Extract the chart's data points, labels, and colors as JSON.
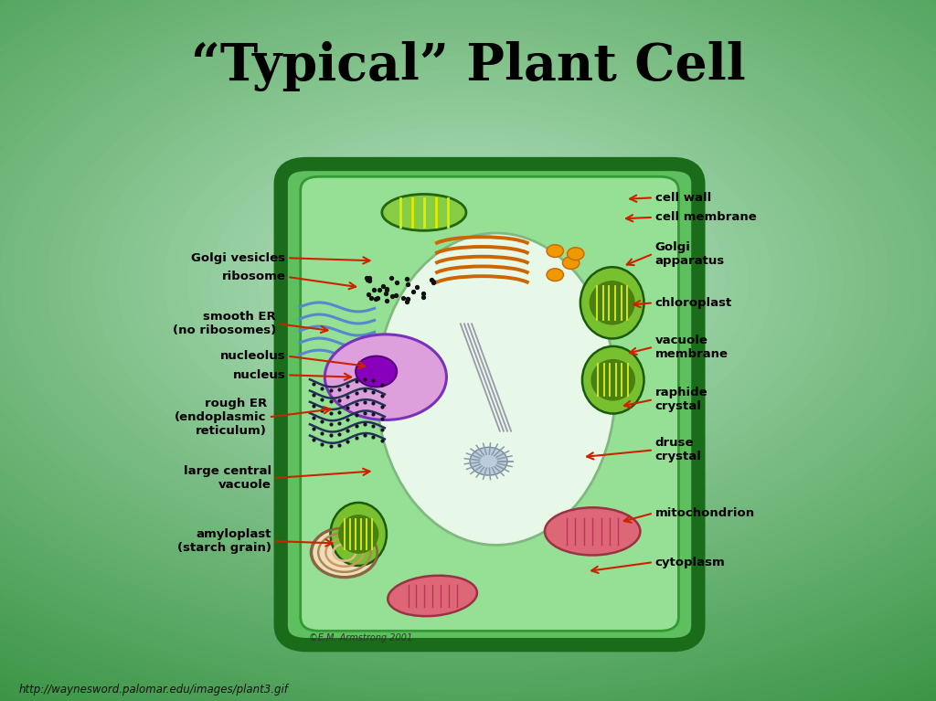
{
  "title": "“Typical” Plant Cell",
  "title_fontsize": 40,
  "title_color": "#000000",
  "bg_color": "#3d8c4a",
  "url_text": "http://waynesword.palomar.edu/images/plant3.gif",
  "copyright_text": "©E.M. Armstrong 2001",
  "left_labels": [
    {
      "text": "Golgi vesicles",
      "xt": 0.305,
      "yt": 0.632,
      "xa": 0.4,
      "ya": 0.628
    },
    {
      "text": "ribosome",
      "xt": 0.305,
      "yt": 0.605,
      "xa": 0.385,
      "ya": 0.59
    },
    {
      "text": "smooth ER\n(no ribosomes)",
      "xt": 0.295,
      "yt": 0.538,
      "xa": 0.355,
      "ya": 0.528
    },
    {
      "text": "nucleolus",
      "xt": 0.305,
      "yt": 0.492,
      "xa": 0.395,
      "ya": 0.477
    },
    {
      "text": "nucleus",
      "xt": 0.305,
      "yt": 0.465,
      "xa": 0.38,
      "ya": 0.462
    },
    {
      "text": "rough ER\n(endoplasmic\nreticulum)",
      "xt": 0.285,
      "yt": 0.405,
      "xa": 0.358,
      "ya": 0.417
    },
    {
      "text": "large central\nvacuole",
      "xt": 0.29,
      "yt": 0.318,
      "xa": 0.4,
      "ya": 0.328
    },
    {
      "text": "amyloplast\n(starch grain)",
      "xt": 0.29,
      "yt": 0.228,
      "xa": 0.36,
      "ya": 0.225
    }
  ],
  "right_labels": [
    {
      "text": "cell wall",
      "xt": 0.7,
      "yt": 0.718,
      "xa": 0.668,
      "ya": 0.716
    },
    {
      "text": "cell membrane",
      "xt": 0.7,
      "yt": 0.69,
      "xa": 0.664,
      "ya": 0.688
    },
    {
      "text": "Golgi\napparatus",
      "xt": 0.7,
      "yt": 0.638,
      "xa": 0.665,
      "ya": 0.62
    },
    {
      "text": "chloroplast",
      "xt": 0.7,
      "yt": 0.568,
      "xa": 0.672,
      "ya": 0.565
    },
    {
      "text": "vacuole\nmembrane",
      "xt": 0.7,
      "yt": 0.505,
      "xa": 0.668,
      "ya": 0.495
    },
    {
      "text": "raphide\ncrystal",
      "xt": 0.7,
      "yt": 0.43,
      "xa": 0.662,
      "ya": 0.42
    },
    {
      "text": "druse\ncrystal",
      "xt": 0.7,
      "yt": 0.358,
      "xa": 0.622,
      "ya": 0.348
    },
    {
      "text": "mitochondrion",
      "xt": 0.7,
      "yt": 0.268,
      "xa": 0.662,
      "ya": 0.255
    },
    {
      "text": "cytoplasm",
      "xt": 0.7,
      "yt": 0.198,
      "xa": 0.627,
      "ya": 0.185
    }
  ]
}
